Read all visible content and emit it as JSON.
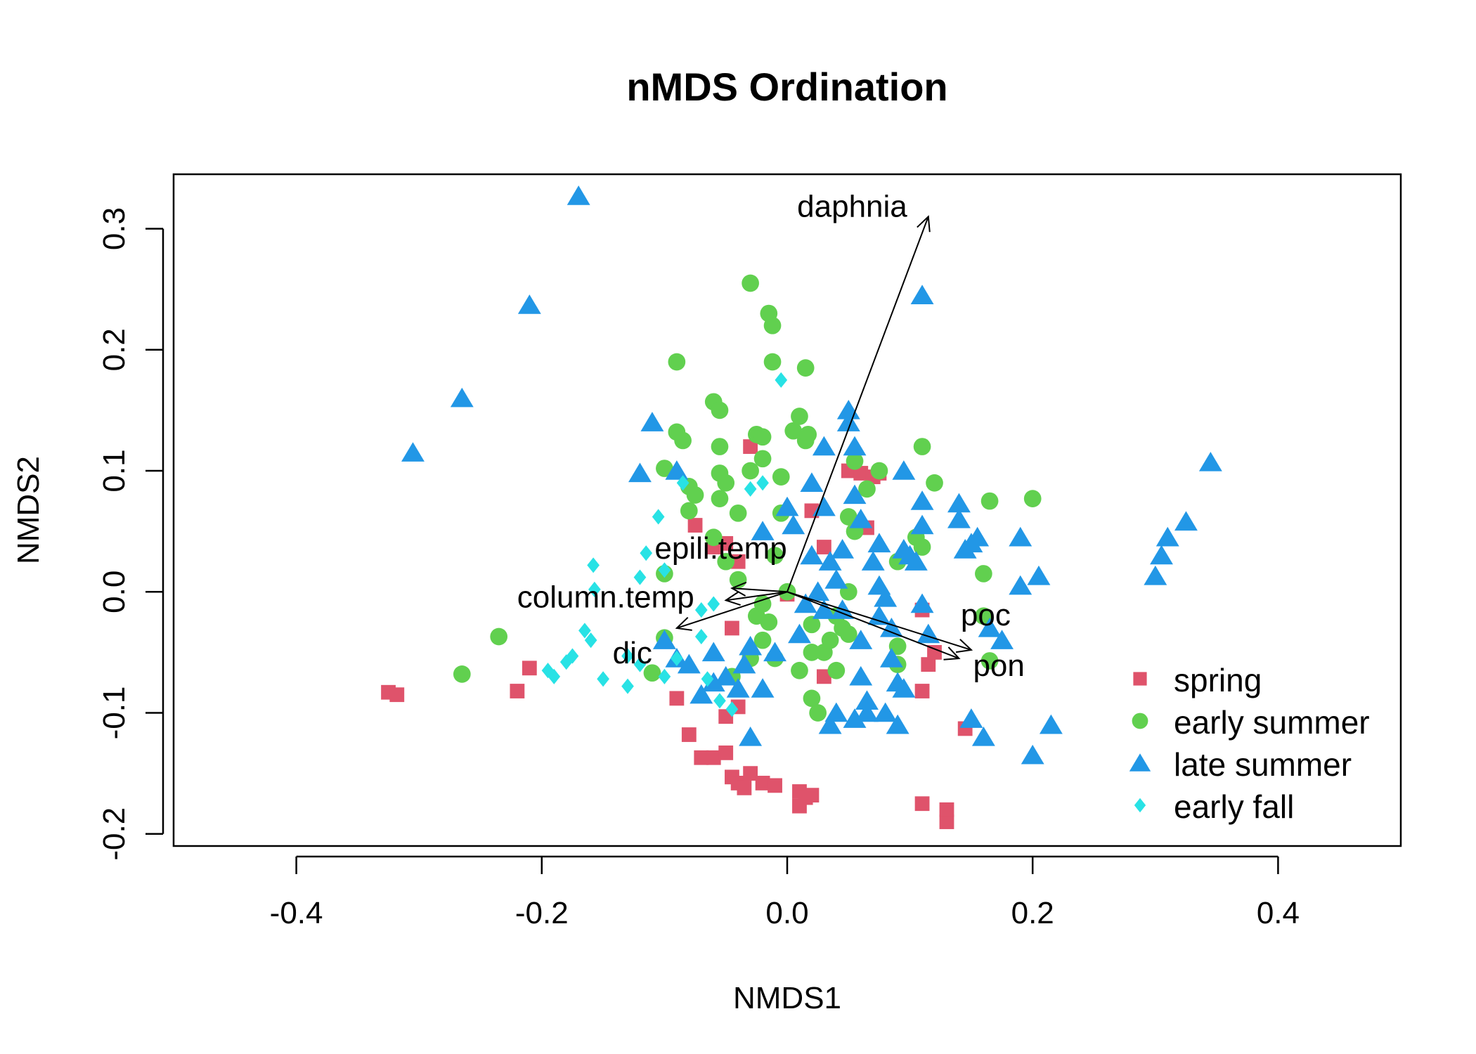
{
  "chart_data": {
    "type": "scatter",
    "title": "nMDS Ordination",
    "xlabel": "NMDS1",
    "ylabel": "NMDS2",
    "xlim": [
      -0.5,
      0.5
    ],
    "ylim": [
      -0.21,
      0.345
    ],
    "x_ticks": [
      "-0.4",
      "-0.2",
      "0.0",
      "0.2",
      "0.4"
    ],
    "y_ticks": [
      "-0.2",
      "-0.1",
      "0.0",
      "0.1",
      "0.2",
      "0.3"
    ],
    "grid": false,
    "legend_position": "bottom-right",
    "series": [
      {
        "name": "spring",
        "marker": "square",
        "color": "#DF536B",
        "points": [
          [
            -0.325,
            -0.083
          ],
          [
            -0.318,
            -0.085
          ],
          [
            -0.22,
            -0.082
          ],
          [
            -0.21,
            -0.063
          ],
          [
            -0.09,
            -0.088
          ],
          [
            -0.08,
            -0.118
          ],
          [
            -0.07,
            -0.137
          ],
          [
            -0.06,
            -0.137
          ],
          [
            -0.05,
            -0.133
          ],
          [
            -0.045,
            -0.153
          ],
          [
            -0.04,
            -0.158
          ],
          [
            -0.035,
            -0.162
          ],
          [
            -0.03,
            -0.15
          ],
          [
            -0.02,
            -0.158
          ],
          [
            -0.01,
            -0.16
          ],
          [
            -0.05,
            -0.103
          ],
          [
            -0.04,
            -0.095
          ],
          [
            0.01,
            -0.165
          ],
          [
            0.01,
            -0.177
          ],
          [
            0.015,
            -0.17
          ],
          [
            0.02,
            -0.168
          ],
          [
            0.03,
            -0.07
          ],
          [
            0.11,
            -0.175
          ],
          [
            0.13,
            -0.19
          ],
          [
            0.13,
            -0.18
          ],
          [
            0.145,
            -0.113
          ],
          [
            0.11,
            -0.082
          ],
          [
            0.115,
            -0.06
          ],
          [
            0.12,
            -0.05
          ],
          [
            0.11,
            -0.015
          ],
          [
            -0.075,
            0.055
          ],
          [
            -0.05,
            0.04
          ],
          [
            -0.04,
            0.025
          ],
          [
            -0.03,
            0.12
          ],
          [
            0.0,
            -0.002
          ],
          [
            0.02,
            0.067
          ],
          [
            0.03,
            0.037
          ],
          [
            0.05,
            0.1
          ],
          [
            0.06,
            0.098
          ],
          [
            0.07,
            0.095
          ],
          [
            0.075,
            0.098
          ],
          [
            0.065,
            0.053
          ],
          [
            -0.06,
            0.037
          ],
          [
            -0.045,
            -0.03
          ]
        ]
      },
      {
        "name": "early summer",
        "marker": "circle",
        "color": "#61D04F",
        "points": [
          [
            -0.265,
            -0.068
          ],
          [
            -0.235,
            -0.037
          ],
          [
            -0.11,
            -0.067
          ],
          [
            -0.1,
            -0.038
          ],
          [
            -0.1,
            0.102
          ],
          [
            -0.1,
            0.015
          ],
          [
            -0.09,
            0.132
          ],
          [
            -0.085,
            0.125
          ],
          [
            -0.08,
            0.087
          ],
          [
            -0.08,
            0.067
          ],
          [
            -0.075,
            0.08
          ],
          [
            -0.06,
            0.157
          ],
          [
            -0.055,
            0.15
          ],
          [
            -0.055,
            0.12
          ],
          [
            -0.055,
            0.098
          ],
          [
            -0.05,
            0.09
          ],
          [
            -0.055,
            0.077
          ],
          [
            -0.04,
            0.065
          ],
          [
            -0.06,
            0.045
          ],
          [
            -0.05,
            0.025
          ],
          [
            -0.04,
            0.01
          ],
          [
            -0.045,
            -0.07
          ],
          [
            -0.03,
            0.1
          ],
          [
            -0.025,
            0.13
          ],
          [
            -0.02,
            0.128
          ],
          [
            -0.02,
            0.11
          ],
          [
            -0.025,
            -0.02
          ],
          [
            -0.03,
            -0.055
          ],
          [
            -0.02,
            -0.01
          ],
          [
            -0.02,
            -0.04
          ],
          [
            -0.01,
            -0.055
          ],
          [
            -0.005,
            0.095
          ],
          [
            -0.005,
            0.065
          ],
          [
            -0.01,
            0.03
          ],
          [
            -0.03,
            0.255
          ],
          [
            -0.015,
            0.23
          ],
          [
            -0.012,
            0.22
          ],
          [
            -0.012,
            0.19
          ],
          [
            0.005,
            0.133
          ],
          [
            0.01,
            0.145
          ],
          [
            0.015,
            0.185
          ],
          [
            0.015,
            0.125
          ],
          [
            0.02,
            -0.027
          ],
          [
            0.02,
            -0.05
          ],
          [
            0.01,
            -0.065
          ],
          [
            0.02,
            -0.088
          ],
          [
            0.025,
            -0.1
          ],
          [
            0.03,
            -0.05
          ],
          [
            0.035,
            -0.04
          ],
          [
            0.04,
            -0.02
          ],
          [
            0.04,
            -0.065
          ],
          [
            0.045,
            -0.03
          ],
          [
            0.05,
            -0.035
          ],
          [
            0.055,
            0.05
          ],
          [
            0.05,
            0.0
          ],
          [
            0.05,
            0.062
          ],
          [
            0.055,
            0.108
          ],
          [
            0.065,
            0.085
          ],
          [
            0.075,
            0.1
          ],
          [
            0.09,
            0.025
          ],
          [
            0.09,
            -0.045
          ],
          [
            0.09,
            -0.06
          ],
          [
            0.105,
            0.045
          ],
          [
            0.11,
            0.037
          ],
          [
            0.11,
            0.12
          ],
          [
            0.12,
            0.09
          ],
          [
            0.16,
            -0.02
          ],
          [
            0.16,
            0.015
          ],
          [
            0.165,
            -0.057
          ],
          [
            0.2,
            0.077
          ],
          [
            -0.09,
            0.19
          ],
          [
            0.165,
            0.075
          ],
          [
            0.017,
            0.13
          ],
          [
            0.0,
            0.0
          ],
          [
            -0.015,
            -0.025
          ]
        ]
      },
      {
        "name": "late summer",
        "marker": "triangle",
        "color": "#2297E6",
        "points": [
          [
            -0.17,
            0.327
          ],
          [
            -0.21,
            0.237
          ],
          [
            -0.265,
            0.16
          ],
          [
            -0.305,
            0.115
          ],
          [
            -0.11,
            0.14
          ],
          [
            -0.12,
            0.098
          ],
          [
            -0.09,
            0.1
          ],
          [
            -0.1,
            -0.04
          ],
          [
            -0.09,
            -0.055
          ],
          [
            -0.08,
            -0.06
          ],
          [
            -0.07,
            -0.085
          ],
          [
            -0.06,
            -0.075
          ],
          [
            -0.06,
            -0.05
          ],
          [
            -0.05,
            -0.07
          ],
          [
            -0.04,
            -0.08
          ],
          [
            -0.035,
            -0.06
          ],
          [
            -0.03,
            -0.045
          ],
          [
            -0.03,
            -0.12
          ],
          [
            -0.02,
            -0.08
          ],
          [
            -0.01,
            -0.05
          ],
          [
            0.005,
            0.055
          ],
          [
            0.01,
            -0.035
          ],
          [
            0.015,
            -0.01
          ],
          [
            0.02,
            0.03
          ],
          [
            0.025,
            0.0
          ],
          [
            0.03,
            -0.015
          ],
          [
            0.03,
            0.12
          ],
          [
            0.035,
            0.025
          ],
          [
            0.04,
            0.01
          ],
          [
            0.045,
            0.035
          ],
          [
            0.045,
            -0.015
          ],
          [
            0.05,
            0.15
          ],
          [
            0.05,
            0.14
          ],
          [
            0.055,
            0.12
          ],
          [
            0.055,
            0.08
          ],
          [
            0.06,
            0.06
          ],
          [
            0.06,
            -0.04
          ],
          [
            0.06,
            -0.07
          ],
          [
            0.065,
            -0.09
          ],
          [
            0.065,
            -0.1
          ],
          [
            0.07,
            0.025
          ],
          [
            0.075,
            -0.02
          ],
          [
            0.075,
            0.005
          ],
          [
            0.08,
            -0.005
          ],
          [
            0.085,
            -0.03
          ],
          [
            0.085,
            -0.055
          ],
          [
            0.09,
            -0.075
          ],
          [
            0.095,
            -0.08
          ],
          [
            0.095,
            0.1
          ],
          [
            0.1,
            0.03
          ],
          [
            0.105,
            0.025
          ],
          [
            0.11,
            -0.01
          ],
          [
            0.11,
            0.075
          ],
          [
            0.11,
            0.055
          ],
          [
            0.115,
            -0.035
          ],
          [
            0.11,
            0.245
          ],
          [
            0.14,
            0.073
          ],
          [
            0.14,
            0.06
          ],
          [
            0.145,
            0.035
          ],
          [
            0.15,
            0.04
          ],
          [
            0.155,
            0.045
          ],
          [
            0.15,
            -0.105
          ],
          [
            0.16,
            -0.12
          ],
          [
            0.165,
            -0.03
          ],
          [
            0.175,
            -0.04
          ],
          [
            0.19,
            0.045
          ],
          [
            0.19,
            0.005
          ],
          [
            0.205,
            0.013
          ],
          [
            0.2,
            -0.135
          ],
          [
            0.215,
            -0.11
          ],
          [
            0.3,
            0.013
          ],
          [
            0.305,
            0.03
          ],
          [
            0.31,
            0.045
          ],
          [
            0.325,
            0.058
          ],
          [
            0.345,
            0.107
          ],
          [
            0.04,
            -0.1
          ],
          [
            0.035,
            -0.11
          ],
          [
            0.055,
            -0.105
          ],
          [
            0.03,
            0.07
          ],
          [
            0.0,
            0.07
          ],
          [
            -0.02,
            0.05
          ],
          [
            0.02,
            0.09
          ],
          [
            0.075,
            0.04
          ],
          [
            0.095,
            0.035
          ],
          [
            0.09,
            -0.11
          ],
          [
            0.08,
            -0.1
          ]
        ]
      },
      {
        "name": "early fall",
        "marker": "diamond",
        "color": "#28E2E5",
        "points": [
          [
            -0.195,
            -0.065
          ],
          [
            -0.19,
            -0.07
          ],
          [
            -0.18,
            -0.058
          ],
          [
            -0.175,
            -0.053
          ],
          [
            -0.165,
            -0.032
          ],
          [
            -0.16,
            -0.04
          ],
          [
            -0.157,
            0.002
          ],
          [
            -0.158,
            0.022
          ],
          [
            -0.15,
            -0.072
          ],
          [
            -0.13,
            -0.078
          ],
          [
            -0.13,
            -0.053
          ],
          [
            -0.12,
            -0.06
          ],
          [
            -0.12,
            0.012
          ],
          [
            -0.115,
            0.032
          ],
          [
            -0.105,
            0.062
          ],
          [
            -0.1,
            -0.07
          ],
          [
            -0.09,
            -0.055
          ],
          [
            -0.085,
            0.09
          ],
          [
            -0.07,
            -0.015
          ],
          [
            -0.07,
            -0.037
          ],
          [
            -0.06,
            -0.01
          ],
          [
            -0.055,
            -0.09
          ],
          [
            -0.045,
            -0.097
          ],
          [
            -0.005,
            0.175
          ],
          [
            -0.02,
            0.09
          ],
          [
            -0.03,
            0.085
          ],
          [
            -0.1,
            0.018
          ],
          [
            -0.065,
            -0.072
          ]
        ]
      }
    ],
    "vectors": [
      {
        "label": "daphnia",
        "x": 0.115,
        "y": 0.31
      },
      {
        "label": "epili.temp",
        "x": -0.045,
        "y": 0.003
      },
      {
        "label": "column.temp",
        "x": -0.05,
        "y": -0.007
      },
      {
        "label": "dic",
        "x": -0.09,
        "y": -0.03
      },
      {
        "label": "poc",
        "x": 0.15,
        "y": -0.048
      },
      {
        "label": "pon",
        "x": 0.14,
        "y": -0.055
      }
    ]
  }
}
